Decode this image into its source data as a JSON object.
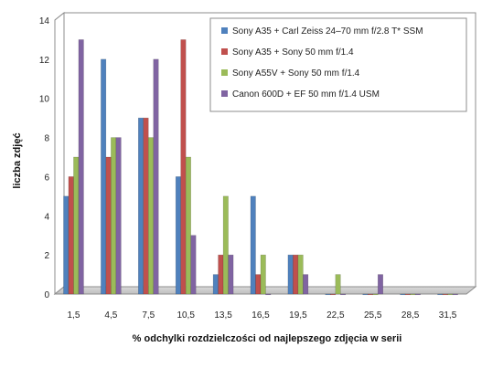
{
  "chart_data": {
    "type": "bar",
    "xlabel": "% odchylki  rozdzielczości  od najlepszego  zdjęcia  w serii",
    "ylabel": "liczba zdjęć",
    "ylim": [
      0,
      14
    ],
    "yticks": [
      0,
      2,
      4,
      6,
      8,
      10,
      12,
      14
    ],
    "grid": true,
    "legend_position": "top-right",
    "categories": [
      "1,5",
      "4,5",
      "7,5",
      "10,5",
      "13,5",
      "16,5",
      "19,5",
      "22,5",
      "25,5",
      "28,5",
      "31,5"
    ],
    "series": [
      {
        "name": "Sony A35 + Carl Zeiss 24–70 mm f/2.8 T* SSM",
        "color": "#4F81BD",
        "values": [
          5,
          12,
          9,
          6,
          1,
          5,
          2,
          0,
          0,
          0,
          0
        ]
      },
      {
        "name": "Sony A35 + Sony 50 mm f/1.4",
        "color": "#C0504D",
        "values": [
          6,
          7,
          9,
          13,
          2,
          1,
          2,
          0,
          0,
          0,
          0
        ]
      },
      {
        "name": "Sony A55V + Sony 50 mm f/1.4",
        "color": "#9BBB59",
        "values": [
          7,
          8,
          8,
          7,
          5,
          2,
          2,
          1,
          0,
          0,
          0
        ]
      },
      {
        "name": "Canon 600D + EF 50 mm f/1.4 USM",
        "color": "#8064A2",
        "values": [
          13,
          8,
          12,
          3,
          2,
          0,
          1,
          0,
          1,
          0,
          0
        ]
      }
    ]
  }
}
